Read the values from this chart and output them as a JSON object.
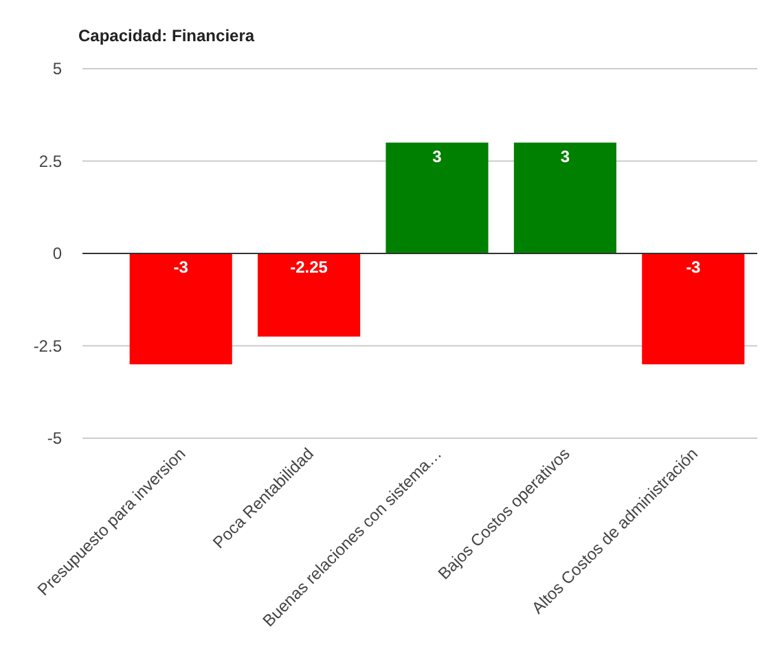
{
  "chart_data": {
    "type": "bar",
    "title": "Capacidad: Financiera",
    "categories": [
      "Presupuesto para inversion",
      "Poca Rentabilidad",
      "Buenas relaciones con sistema…",
      "Bajos Costos operativos",
      "Altos Costos de administración"
    ],
    "values": [
      -3,
      -2.25,
      3,
      3,
      -3
    ],
    "colors": [
      "#ff0000",
      "#ff0000",
      "#008000",
      "#008000",
      "#ff0000"
    ],
    "ylim": [
      -5,
      5
    ],
    "yticks": [
      -5,
      -2.5,
      0,
      2.5,
      5
    ],
    "grid": "y",
    "data_labels": true
  }
}
